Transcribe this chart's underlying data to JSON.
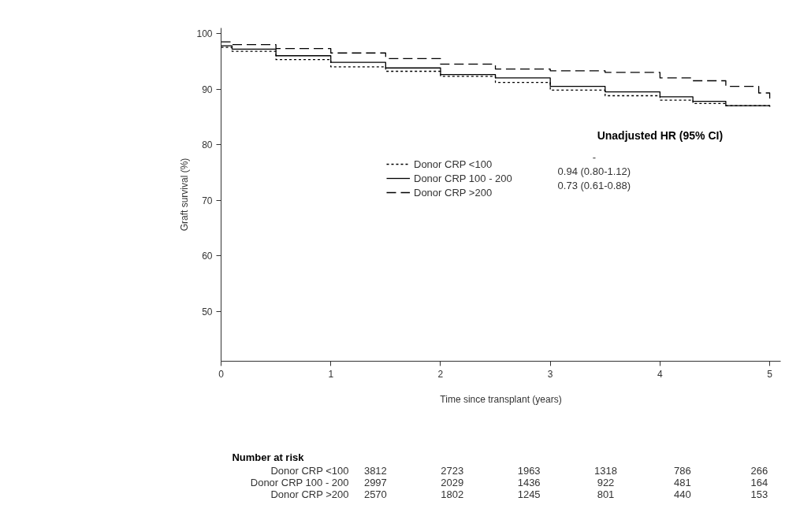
{
  "chart_data": {
    "type": "step",
    "xlabel": "Time since transplant (years)",
    "ylabel": "Graft survival (%)",
    "xlim": [
      0,
      5.1
    ],
    "ylim": [
      41,
      101
    ],
    "xticks": [
      0,
      1,
      2,
      3,
      4,
      5
    ],
    "yticks": [
      50,
      60,
      70,
      80,
      90,
      100
    ],
    "grid": false,
    "legend": "center",
    "series": [
      {
        "name": "Donor CRP <100",
        "color": "#000000",
        "line_style": "dotted",
        "x": [
          0,
          0.1,
          0.5,
          1,
          1.5,
          2,
          2.5,
          3,
          3.5,
          4,
          4.3,
          4.6,
          5
        ],
        "values": [
          97.5,
          96.8,
          95.3,
          94.0,
          93.2,
          92.3,
          91.2,
          89.8,
          88.8,
          88.0,
          87.4,
          87.0,
          86.7
        ]
      },
      {
        "name": "Donor CRP 100 - 200",
        "color": "#000000",
        "line_style": "solid",
        "x": [
          0,
          0.1,
          0.5,
          1,
          1.5,
          2,
          2.5,
          3,
          3.5,
          4,
          4.3,
          4.6,
          5
        ],
        "values": [
          97.8,
          97.2,
          96.0,
          94.8,
          93.8,
          92.6,
          92.0,
          90.5,
          89.5,
          88.6,
          87.8,
          87.0,
          86.8
        ]
      },
      {
        "name": "Donor CRP >200",
        "color": "#000000",
        "line_style": "dashed",
        "x": [
          0,
          0.1,
          0.5,
          1,
          1.5,
          2,
          2.5,
          3,
          3.5,
          4,
          4.3,
          4.6,
          4.9,
          5
        ],
        "values": [
          98.5,
          98.0,
          97.3,
          96.5,
          95.5,
          94.5,
          93.6,
          93.3,
          93.0,
          92.0,
          91.5,
          90.5,
          89.3,
          88.0
        ]
      }
    ],
    "annotations": [
      "Unadjusted HR (95% CI)",
      "-",
      "0.94 (0.80-1.12)",
      "0.73 (0.61-0.88)",
      "Number at risk",
      "Donor CRP <100",
      "3812",
      "2723",
      "1963",
      "1318",
      "786",
      "266",
      "Donor CRP 100 - 200",
      "2997",
      "2029",
      "1436",
      "922",
      "481",
      "164",
      "Donor CRP >200",
      "2570",
      "1802",
      "1245",
      "801",
      "440",
      "153"
    ]
  }
}
